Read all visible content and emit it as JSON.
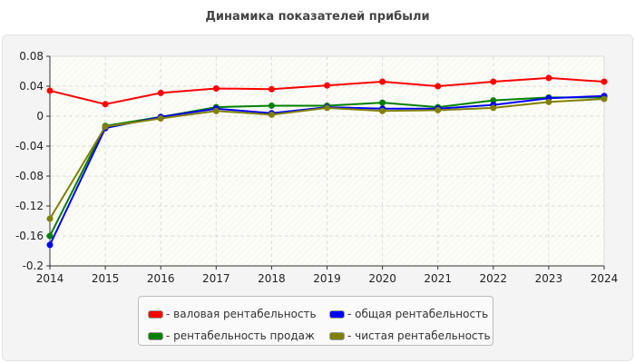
{
  "chart_data": {
    "type": "line",
    "title": "Динамика показателей прибыли",
    "x": [
      2014,
      2015,
      2016,
      2017,
      2018,
      2019,
      2020,
      2021,
      2022,
      2023,
      2024
    ],
    "ylim": [
      -0.2,
      0.08
    ],
    "yticks": [
      "0.08",
      "0.04",
      "0",
      "-0.04",
      "-0.08",
      "-0.12",
      "-0.16",
      "-0.2"
    ],
    "ytick_values": [
      0.08,
      0.04,
      0,
      -0.04,
      -0.08,
      -0.12,
      -0.16,
      -0.2
    ],
    "grid": true,
    "legend_placement": "bottom",
    "series": [
      {
        "name": "- валовая рентабельность",
        "color": "#ff0000",
        "values": [
          0.034,
          0.016,
          0.031,
          0.037,
          0.036,
          0.041,
          0.046,
          0.04,
          0.046,
          0.051,
          0.046
        ]
      },
      {
        "name": "- рентабельность продаж",
        "color": "#008000",
        "values": [
          -0.16,
          -0.013,
          -0.001,
          0.012,
          0.014,
          0.014,
          0.018,
          0.012,
          0.021,
          0.025,
          0.025
        ]
      },
      {
        "name": "- общая рентабельность",
        "color": "#0000ff",
        "values": [
          -0.172,
          -0.016,
          -0.001,
          0.01,
          0.004,
          0.012,
          0.01,
          0.01,
          0.015,
          0.024,
          0.027
        ]
      },
      {
        "name": "- чистая рентабельность",
        "color": "#808000",
        "values": [
          -0.137,
          -0.014,
          -0.003,
          0.007,
          0.002,
          0.011,
          0.007,
          0.008,
          0.011,
          0.019,
          0.023
        ]
      }
    ]
  }
}
